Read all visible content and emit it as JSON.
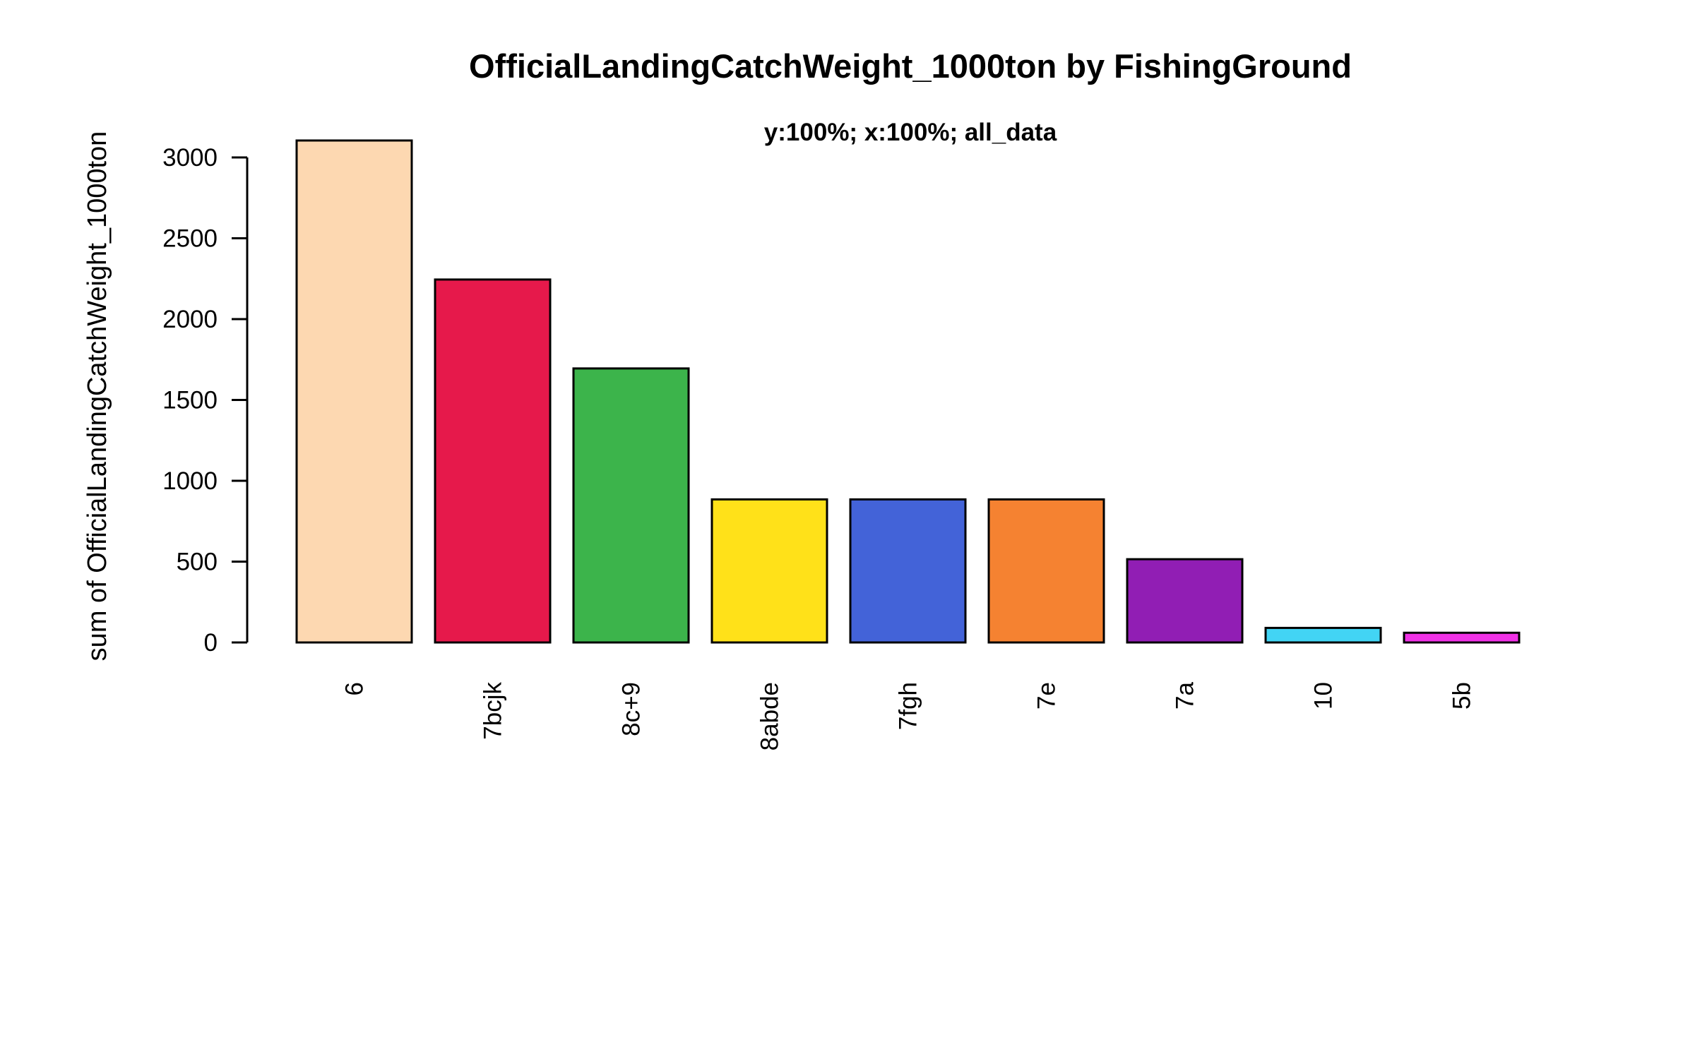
{
  "chart_data": {
    "type": "bar",
    "title": "OfficialLandingCatchWeight_1000ton by FishingGround",
    "subtitle": "y:100%; x:100%; all_data",
    "xlabel": "",
    "ylabel": "sum of OfficialLandingCatchWeight_1000ton",
    "categories": [
      "6",
      "7bcjk",
      "8c+9",
      "8abde",
      "7fgh",
      "7e",
      "7a",
      "10",
      "5b"
    ],
    "values": [
      3105,
      2245,
      1695,
      885,
      885,
      885,
      515,
      90,
      60
    ],
    "colors": [
      "#FDD8B1",
      "#E6194B",
      "#3CB44B",
      "#FFE119",
      "#4363D8",
      "#F58231",
      "#911EB4",
      "#42D4F4",
      "#F032E6"
    ],
    "ylim": [
      0,
      3105
    ],
    "yticks": [
      0,
      500,
      1000,
      1500,
      2000,
      2500,
      3000
    ],
    "ytick_labels": [
      "0",
      "500",
      "1000",
      "1500",
      "2000",
      "2500",
      "3000"
    ],
    "grid": false,
    "legend": "none"
  }
}
